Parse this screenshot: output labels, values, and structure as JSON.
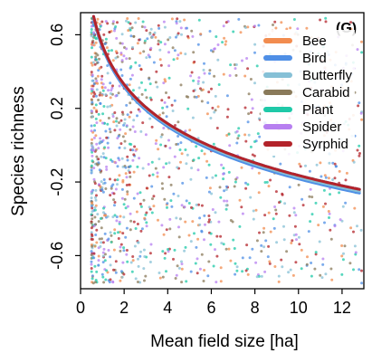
{
  "panel_label": "(G)",
  "chart_data": {
    "type": "scatter",
    "xlabel": "Mean field size [ha]",
    "ylabel": "Species richness",
    "xlim": [
      0,
      13
    ],
    "ylim": [
      -0.78,
      0.72
    ],
    "x_ticks": [
      0,
      2,
      4,
      6,
      8,
      10,
      12
    ],
    "y_ticks": [
      0.6,
      0.2,
      -0.2,
      -0.6
    ],
    "x_tick_labels": [
      "0",
      "2",
      "4",
      "6",
      "8",
      "10",
      "12"
    ],
    "y_tick_labels": [
      "0.6",
      "0.2",
      "-0.2",
      "-0.6"
    ],
    "grid": false,
    "legend_position": "top-right",
    "series": [
      {
        "name": "Bee",
        "color": "#f28c4f",
        "fit_endpoints": [
          [
            0.6,
            0.7
          ],
          [
            12.8,
            -0.25
          ]
        ]
      },
      {
        "name": "Bird",
        "color": "#4f8fe6",
        "fit_endpoints": [
          [
            0.6,
            0.69
          ],
          [
            12.8,
            -0.26
          ]
        ]
      },
      {
        "name": "Butterfly",
        "color": "#86c0d6",
        "fit_endpoints": [
          [
            0.6,
            0.7
          ],
          [
            12.8,
            -0.25
          ]
        ]
      },
      {
        "name": "Carabid",
        "color": "#8a7a5a",
        "fit_endpoints": [
          [
            0.6,
            0.7
          ],
          [
            12.8,
            -0.24
          ]
        ]
      },
      {
        "name": "Plant",
        "color": "#1fc9a8",
        "fit_endpoints": [
          [
            0.6,
            0.7
          ],
          [
            12.8,
            -0.24
          ]
        ]
      },
      {
        "name": "Spider",
        "color": "#b77ff0",
        "fit_endpoints": [
          [
            0.6,
            0.7
          ],
          [
            12.8,
            -0.24
          ]
        ]
      },
      {
        "name": "Syrphid",
        "color": "#b3232a",
        "fit_endpoints": [
          [
            0.6,
            0.7
          ],
          [
            12.8,
            -0.24
          ]
        ]
      }
    ],
    "fit_shape": "decreasing, steep below 4 ha then flattening",
    "scatter_x_range": [
      0.5,
      13
    ],
    "scatter_note": "points jittered along the full y range"
  }
}
